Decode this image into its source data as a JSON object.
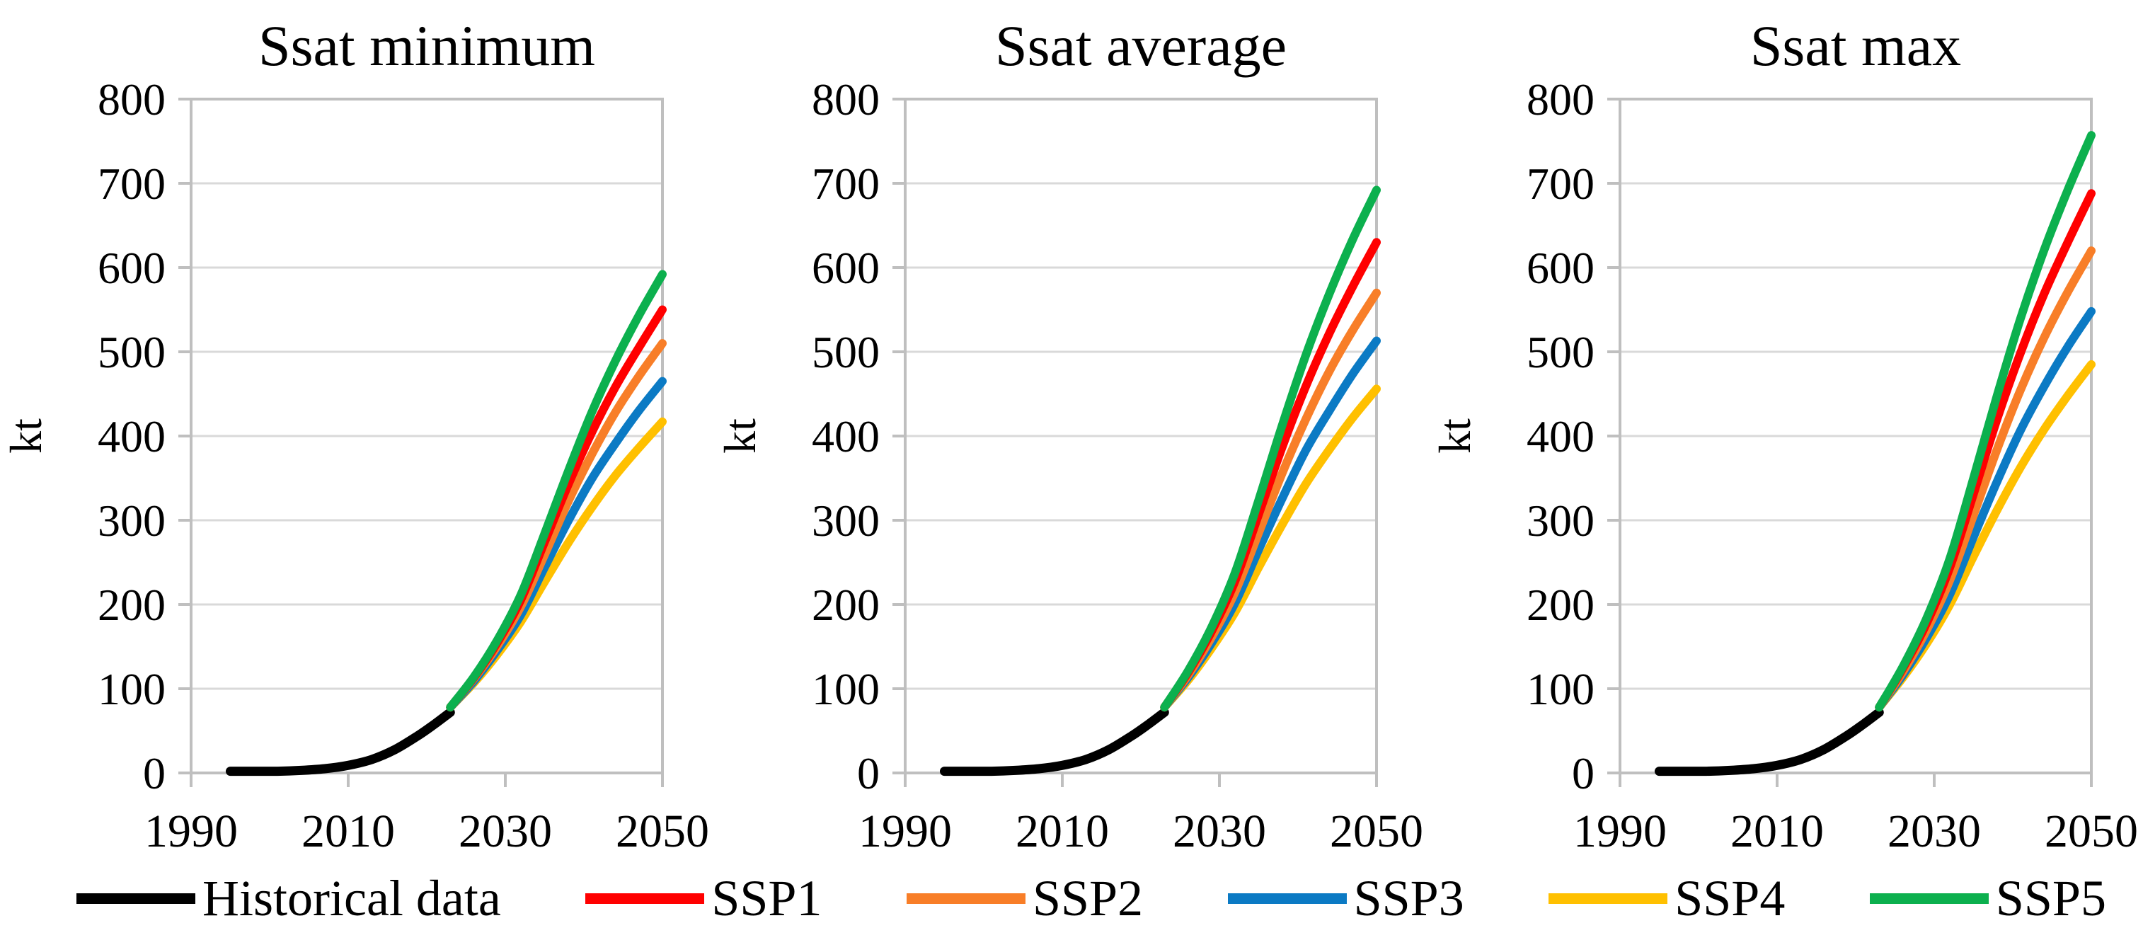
{
  "figure": {
    "y_axis_label": "kt",
    "y_ticks": [
      0,
      100,
      200,
      300,
      400,
      500,
      600,
      700,
      800
    ],
    "x_ticks": [
      1990,
      2010,
      2030,
      2050
    ],
    "x_range": [
      1990,
      2050
    ],
    "y_range": [
      0,
      800
    ]
  },
  "colors": {
    "historical": "#000000",
    "ssp1": "#FF0000",
    "ssp2": "#F87E28",
    "ssp3": "#0B7AC4",
    "ssp4": "#FFC000",
    "ssp5": "#0CB04E",
    "grid": "#D9D9D9",
    "axis": "#BFBFBF"
  },
  "legend": [
    {
      "label": "Historical data",
      "color": "#000000"
    },
    {
      "label": "SSP1",
      "color": "#FF0000"
    },
    {
      "label": "SSP2",
      "color": "#F87E28"
    },
    {
      "label": "SSP3",
      "color": "#0B7AC4"
    },
    {
      "label": "SSP4",
      "color": "#FFC000"
    },
    {
      "label": "SSP5",
      "color": "#0CB04E"
    }
  ],
  "chart_data": [
    {
      "type": "line",
      "title": "Ssat minimum",
      "xlabel": "",
      "ylabel": "kt",
      "xlim": [
        1990,
        2050
      ],
      "ylim": [
        0,
        800
      ],
      "x_ticks": [
        1990,
        2010,
        2030,
        2050
      ],
      "y_ticks": [
        0,
        100,
        200,
        300,
        400,
        500,
        600,
        700,
        800
      ],
      "grid": true,
      "series": [
        {
          "name": "Historical data",
          "color": "#000000",
          "x": [
            1995,
            1998,
            2001,
            2004,
            2007,
            2010,
            2013,
            2016,
            2019,
            2021,
            2023
          ],
          "values": [
            2,
            2,
            2,
            3,
            5,
            9,
            16,
            28,
            45,
            58,
            72
          ]
        },
        {
          "name": "SSP1",
          "color": "#FF0000",
          "x": [
            2023,
            2026,
            2029,
            2032,
            2035,
            2038,
            2041,
            2044,
            2047,
            2050
          ],
          "values": [
            78,
            113,
            155,
            206,
            274,
            342,
            404,
            458,
            505,
            550
          ]
        },
        {
          "name": "SSP2",
          "color": "#F87E28",
          "x": [
            2023,
            2026,
            2029,
            2032,
            2035,
            2038,
            2041,
            2044,
            2047,
            2050
          ],
          "values": [
            78,
            112,
            151,
            198,
            259,
            322,
            378,
            428,
            471,
            510
          ]
        },
        {
          "name": "SSP3",
          "color": "#0B7AC4",
          "x": [
            2023,
            2026,
            2029,
            2032,
            2035,
            2038,
            2041,
            2044,
            2047,
            2050
          ],
          "values": [
            78,
            109,
            146,
            188,
            244,
            299,
            349,
            391,
            430,
            465
          ]
        },
        {
          "name": "SSP4",
          "color": "#FFC000",
          "x": [
            2023,
            2026,
            2029,
            2032,
            2035,
            2038,
            2041,
            2044,
            2047,
            2050
          ],
          "values": [
            78,
            107,
            141,
            180,
            227,
            273,
            315,
            353,
            386,
            417
          ]
        },
        {
          "name": "SSP5",
          "color": "#0CB04E",
          "x": [
            2023,
            2026,
            2029,
            2032,
            2035,
            2038,
            2041,
            2044,
            2047,
            2050
          ],
          "values": [
            78,
            114,
            158,
            212,
            284,
            358,
            428,
            489,
            543,
            592
          ]
        }
      ]
    },
    {
      "type": "line",
      "title": "Ssat average",
      "xlabel": "",
      "ylabel": "kt",
      "xlim": [
        1990,
        2050
      ],
      "ylim": [
        0,
        800
      ],
      "x_ticks": [
        1990,
        2010,
        2030,
        2050
      ],
      "y_ticks": [
        0,
        100,
        200,
        300,
        400,
        500,
        600,
        700,
        800
      ],
      "grid": true,
      "series": [
        {
          "name": "Historical data",
          "color": "#000000",
          "x": [
            1995,
            1998,
            2001,
            2004,
            2007,
            2010,
            2013,
            2016,
            2019,
            2021,
            2023
          ],
          "values": [
            2,
            2,
            2,
            3,
            5,
            9,
            16,
            28,
            45,
            58,
            72
          ]
        },
        {
          "name": "SSP1",
          "color": "#FF0000",
          "x": [
            2023,
            2026,
            2029,
            2032,
            2035,
            2038,
            2041,
            2044,
            2047,
            2050
          ],
          "values": [
            78,
            119,
            168,
            228,
            307,
            387,
            459,
            522,
            578,
            630
          ]
        },
        {
          "name": "SSP2",
          "color": "#F87E28",
          "x": [
            2023,
            2026,
            2029,
            2032,
            2035,
            2038,
            2041,
            2044,
            2047,
            2050
          ],
          "values": [
            78,
            116,
            161,
            215,
            285,
            356,
            420,
            477,
            526,
            570
          ]
        },
        {
          "name": "SSP3",
          "color": "#0B7AC4",
          "x": [
            2023,
            2026,
            2029,
            2032,
            2035,
            2038,
            2041,
            2044,
            2047,
            2050
          ],
          "values": [
            78,
            113,
            154,
            202,
            265,
            326,
            383,
            430,
            474,
            513
          ]
        },
        {
          "name": "SSP4",
          "color": "#FFC000",
          "x": [
            2023,
            2026,
            2029,
            2032,
            2035,
            2038,
            2041,
            2044,
            2047,
            2050
          ],
          "values": [
            78,
            110,
            148,
            191,
            244,
            295,
            343,
            384,
            422,
            456
          ]
        },
        {
          "name": "SSP5",
          "color": "#0CB04E",
          "x": [
            2023,
            2026,
            2029,
            2032,
            2035,
            2038,
            2041,
            2044,
            2047,
            2050
          ],
          "values": [
            78,
            121,
            173,
            238,
            324,
            413,
            496,
            569,
            634,
            692
          ]
        }
      ]
    },
    {
      "type": "line",
      "title": "Ssat max",
      "xlabel": "",
      "ylabel": "kt",
      "xlim": [
        1990,
        2050
      ],
      "ylim": [
        0,
        800
      ],
      "x_ticks": [
        1990,
        2010,
        2030,
        2050
      ],
      "y_ticks": [
        0,
        100,
        200,
        300,
        400,
        500,
        600,
        700,
        800
      ],
      "grid": true,
      "series": [
        {
          "name": "Historical data",
          "color": "#000000",
          "x": [
            1995,
            1998,
            2001,
            2004,
            2007,
            2010,
            2013,
            2016,
            2019,
            2021,
            2023
          ],
          "values": [
            2,
            2,
            2,
            3,
            5,
            9,
            16,
            28,
            45,
            58,
            72
          ]
        },
        {
          "name": "SSP1",
          "color": "#FF0000",
          "x": [
            2023,
            2026,
            2029,
            2032,
            2035,
            2038,
            2041,
            2044,
            2047,
            2050
          ],
          "values": [
            78,
            124,
            177,
            244,
            331,
            420,
            499,
            569,
            630,
            688
          ]
        },
        {
          "name": "SSP2",
          "color": "#F87E28",
          "x": [
            2023,
            2026,
            2029,
            2032,
            2035,
            2038,
            2041,
            2044,
            2047,
            2050
          ],
          "values": [
            78,
            120,
            169,
            229,
            306,
            384,
            455,
            517,
            571,
            620
          ]
        },
        {
          "name": "SSP3",
          "color": "#0B7AC4",
          "x": [
            2023,
            2026,
            2029,
            2032,
            2035,
            2038,
            2041,
            2044,
            2047,
            2050
          ],
          "values": [
            78,
            116,
            160,
            212,
            280,
            346,
            407,
            459,
            506,
            548
          ]
        },
        {
          "name": "SSP4",
          "color": "#FFC000",
          "x": [
            2023,
            2026,
            2029,
            2032,
            2035,
            2038,
            2041,
            2044,
            2047,
            2050
          ],
          "values": [
            78,
            113,
            153,
            200,
            257,
            312,
            363,
            408,
            448,
            485
          ]
        },
        {
          "name": "SSP5",
          "color": "#0CB04E",
          "x": [
            2023,
            2026,
            2029,
            2032,
            2035,
            2038,
            2041,
            2044,
            2047,
            2050
          ],
          "values": [
            78,
            126,
            183,
            255,
            350,
            448,
            540,
            621,
            692,
            757
          ]
        }
      ]
    }
  ]
}
